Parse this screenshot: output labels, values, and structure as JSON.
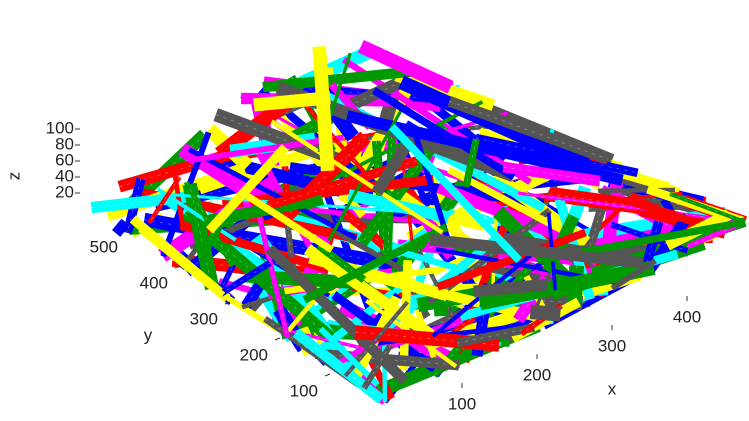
{
  "chart_data": {
    "type": "volume3d",
    "xlabel": "x",
    "ylabel": "y",
    "zlabel": "z",
    "xticks": [
      100,
      200,
      300,
      400
    ],
    "yticks": [
      100,
      200,
      300,
      400,
      500
    ],
    "zticks": [
      20,
      40,
      60,
      80,
      100
    ],
    "colors": [
      "#555555",
      "#ff0000",
      "#00ffff",
      "#ffff00",
      "#0000ff",
      "#009900",
      "#ff00ff"
    ]
  }
}
